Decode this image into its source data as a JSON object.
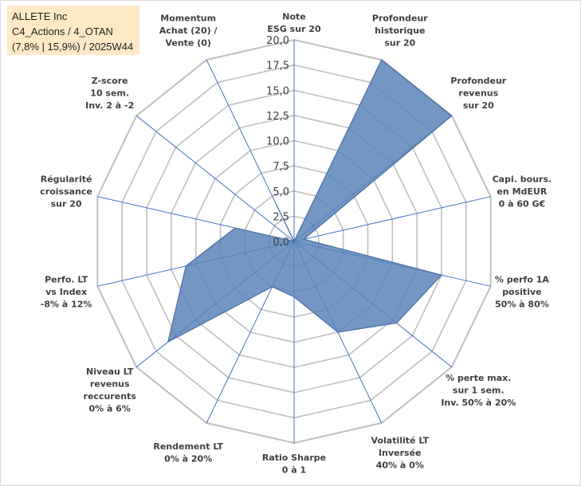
{
  "info_box": {
    "line1": "ALLETE Inc",
    "line2": "C4_Actions / 4_OTAN",
    "line3": "(7,8% | 15,9%) / 2025W44"
  },
  "colors": {
    "fill": "#5b84b8",
    "stroke": "#4a6fa5",
    "grid": "#bfbfbf",
    "radial": "#4472c4",
    "info_bg": "#fde9c6"
  },
  "chart_data": {
    "type": "radar",
    "rlim": [
      0,
      20
    ],
    "tick_labels": [
      "0,0",
      "2,5",
      "5,0",
      "7,5",
      "10,0",
      "12,5",
      "15,0",
      "17,5",
      "20,0"
    ],
    "ticks": [
      0,
      2.5,
      5,
      7.5,
      10,
      12.5,
      15,
      17.5,
      20
    ],
    "grid": true,
    "axes": [
      {
        "label": [
          "Note",
          "ESG sur 20"
        ],
        "value": 0
      },
      {
        "label": [
          "Profondeur",
          "historique",
          "sur 20"
        ],
        "value": 20
      },
      {
        "label": [
          "Profondeur",
          "revenus",
          "sur 20"
        ],
        "value": 20
      },
      {
        "label": [
          "Capi. bours.",
          "en MdEUR",
          "0 à 60 G€"
        ],
        "value": 1
      },
      {
        "label": [
          "% perfo 1A",
          "positive",
          "50% à 80%"
        ],
        "value": 15
      },
      {
        "label": [
          "% perte max.",
          "sur 1 sem.",
          "Inv. 50% à 20%"
        ],
        "value": 13
      },
      {
        "label": [
          "Volatilité LT",
          "Inversée",
          "40% à 0%"
        ],
        "value": 10
      },
      {
        "label": [
          "Ratio Sharpe",
          "0 à 1"
        ],
        "value": 5.5
      },
      {
        "label": [
          "Rendement LT",
          "0% à 20%"
        ],
        "value": 5
      },
      {
        "label": [
          "Niveau LT",
          "revenus",
          "reccurents",
          "0% à 6%"
        ],
        "value": 16
      },
      {
        "label": [
          "Perfo. LT",
          "vs Index",
          "-8% à 12%"
        ],
        "value": 11
      },
      {
        "label": [
          "Régularité",
          "croissance",
          "sur 20"
        ],
        "value": 6
      },
      {
        "label": [
          "Z-score",
          "10 sem.",
          "Inv. 2 à -2"
        ],
        "value": 0
      },
      {
        "label": [
          "Momentum",
          "Achat (20) /",
          "Vente (0)"
        ],
        "value": 4
      }
    ]
  }
}
